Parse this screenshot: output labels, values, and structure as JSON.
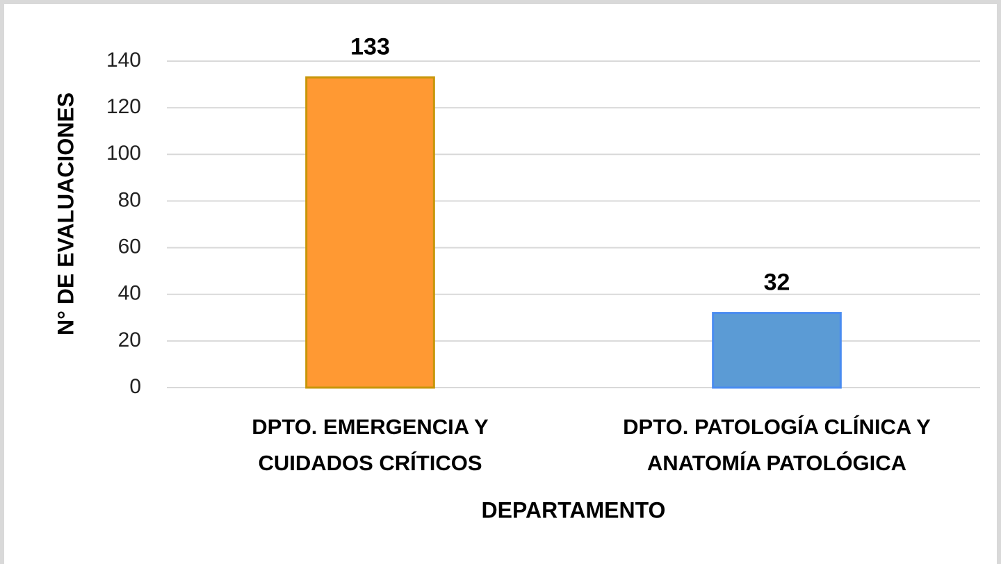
{
  "chart_data": {
    "type": "bar",
    "categories": [
      [
        "DPTO. EMERGENCIA Y",
        "CUIDADOS CRÍTICOS"
      ],
      [
        "DPTO. PATOLOGÍA CLÍNICA Y",
        "ANATOMÍA PATOLÓGICA"
      ]
    ],
    "values": [
      133,
      32
    ],
    "colors": [
      "#FF9933",
      "#5B9BD5"
    ],
    "edge_colors": [
      "#C8960A",
      "#4A8CF0"
    ],
    "xlabel": "DEPARTAMENTO",
    "ylabel": "N° DE EVALUACIONES",
    "ylim": [
      0,
      140
    ],
    "yticks": [
      0,
      20,
      40,
      60,
      80,
      100,
      120,
      140
    ],
    "grid": true
  }
}
